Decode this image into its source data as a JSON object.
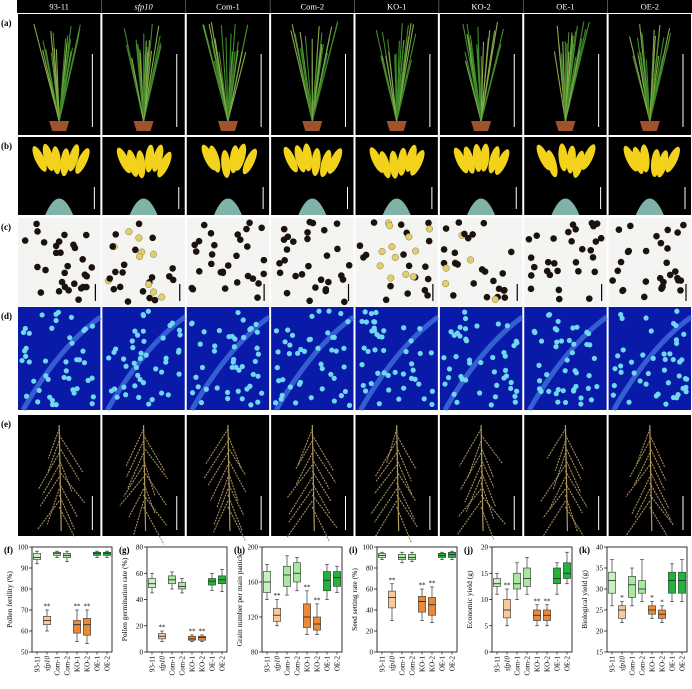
{
  "columns": [
    "93-11",
    "sfp10",
    "Com-1",
    "Com-2",
    "KO-1",
    "KO-2",
    "OE-1",
    "OE-2"
  ],
  "panel_labels": [
    "(a)",
    "(b)",
    "(c)",
    "(d)",
    "(e)"
  ],
  "chart_data": [
    {
      "type": "box",
      "panel": "(f)",
      "ylabel": "Pollen fertility (%)",
      "categories": [
        "93-11",
        "sfp10",
        "Com-1",
        "Com-2",
        "KO-1",
        "KO-2",
        "OE-1",
        "OE-2"
      ],
      "colors": [
        "#c8f0c0",
        "#f6c89a",
        "#a8e8a0",
        "#a8e8a0",
        "#e88a3a",
        "#e88a3a",
        "#22b33a",
        "#22b33a"
      ],
      "annotations": [
        null,
        "**",
        null,
        null,
        "**",
        "**",
        null,
        null
      ],
      "ylim": [
        50,
        100
      ],
      "yticks": [
        50,
        60,
        70,
        80,
        90,
        100
      ],
      "boxes": [
        {
          "min": 92,
          "q1": 94,
          "median": 95,
          "q3": 97,
          "max": 98
        },
        {
          "min": 60,
          "q1": 63,
          "median": 65,
          "q3": 67,
          "max": 70
        },
        {
          "min": 95,
          "q1": 96,
          "median": 97,
          "q3": 97.5,
          "max": 98
        },
        {
          "min": 93,
          "q1": 95,
          "median": 96,
          "q3": 97,
          "max": 98
        },
        {
          "min": 55,
          "q1": 59,
          "median": 63,
          "q3": 65,
          "max": 70
        },
        {
          "min": 54,
          "q1": 58,
          "median": 63,
          "q3": 66,
          "max": 70
        },
        {
          "min": 95,
          "q1": 96,
          "median": 97,
          "q3": 97.5,
          "max": 98
        },
        {
          "min": 95,
          "q1": 96,
          "median": 97,
          "q3": 97.5,
          "max": 98
        }
      ]
    },
    {
      "type": "box",
      "panel": "(g)",
      "ylabel": "Pollen  germination rate (%)",
      "categories": [
        "93-11",
        "sfp10",
        "Com-1",
        "Com-2",
        "KO-1",
        "KO-2",
        "OE-1",
        "OE-2"
      ],
      "colors": [
        "#c8f0c0",
        "#f6c89a",
        "#a8e8a0",
        "#a8e8a0",
        "#e88a3a",
        "#e88a3a",
        "#22b33a",
        "#22b33a"
      ],
      "annotations": [
        null,
        "**",
        null,
        null,
        "**",
        "**",
        null,
        null
      ],
      "ylim": [
        0,
        80
      ],
      "yticks": [
        0,
        20,
        40,
        60,
        80
      ],
      "boxes": [
        {
          "min": 45,
          "q1": 49,
          "median": 52,
          "q3": 56,
          "max": 60
        },
        {
          "min": 8,
          "q1": 10,
          "median": 12,
          "q3": 14,
          "max": 16
        },
        {
          "min": 48,
          "q1": 52,
          "median": 55,
          "q3": 58,
          "max": 61
        },
        {
          "min": 45,
          "q1": 48,
          "median": 50,
          "q3": 53,
          "max": 56
        },
        {
          "min": 8,
          "q1": 9,
          "median": 10,
          "q3": 12,
          "max": 13
        },
        {
          "min": 8,
          "q1": 9,
          "median": 11,
          "q3": 12,
          "max": 13
        },
        {
          "min": 47,
          "q1": 51,
          "median": 54,
          "q3": 56,
          "max": 60
        },
        {
          "min": 46,
          "q1": 52,
          "median": 55,
          "q3": 58,
          "max": 63
        }
      ]
    },
    {
      "type": "box",
      "panel": "(h)",
      "ylabel": "Grain number per main panicle",
      "categories": [
        "93-11",
        "sfp10",
        "Com-1",
        "Com-2",
        "KO-1",
        "KO-2",
        "OE-1",
        "OE-2"
      ],
      "colors": [
        "#c8f0c0",
        "#f6c89a",
        "#a8e8a0",
        "#a8e8a0",
        "#e88a3a",
        "#e88a3a",
        "#22b33a",
        "#22b33a"
      ],
      "annotations": [
        null,
        "**",
        null,
        null,
        "**",
        "**",
        null,
        null
      ],
      "ylim": [
        80,
        200
      ],
      "yticks": [
        80,
        120,
        160,
        200
      ],
      "boxes": [
        {
          "min": 140,
          "q1": 148,
          "median": 160,
          "q3": 172,
          "max": 180
        },
        {
          "min": 110,
          "q1": 115,
          "median": 122,
          "q3": 130,
          "max": 140
        },
        {
          "min": 145,
          "q1": 155,
          "median": 168,
          "q3": 178,
          "max": 190
        },
        {
          "min": 150,
          "q1": 160,
          "median": 170,
          "q3": 182,
          "max": 188
        },
        {
          "min": 100,
          "q1": 108,
          "median": 120,
          "q3": 135,
          "max": 150
        },
        {
          "min": 100,
          "q1": 105,
          "median": 112,
          "q3": 120,
          "max": 135
        },
        {
          "min": 140,
          "q1": 150,
          "median": 162,
          "q3": 172,
          "max": 180
        },
        {
          "min": 148,
          "q1": 155,
          "median": 165,
          "q3": 172,
          "max": 178
        }
      ]
    },
    {
      "type": "box",
      "panel": "(i)",
      "ylabel": "Seed setting rate (%)",
      "categories": [
        "93-11",
        "sfp10",
        "Com-1",
        "Com-2",
        "KO-1",
        "KO-2",
        "OE-1",
        "OE-2"
      ],
      "colors": [
        "#c8f0c0",
        "#f6c89a",
        "#a8e8a0",
        "#a8e8a0",
        "#e88a3a",
        "#e88a3a",
        "#22b33a",
        "#22b33a"
      ],
      "annotations": [
        null,
        "**",
        null,
        null,
        "**",
        "**",
        null,
        null
      ],
      "ylim": [
        0,
        100
      ],
      "yticks": [
        0,
        20,
        40,
        60,
        80,
        100
      ],
      "boxes": [
        {
          "min": 88,
          "q1": 90,
          "median": 92,
          "q3": 94,
          "max": 95
        },
        {
          "min": 30,
          "q1": 42,
          "median": 52,
          "q3": 58,
          "max": 65
        },
        {
          "min": 85,
          "q1": 88,
          "median": 90,
          "q3": 93,
          "max": 95
        },
        {
          "min": 86,
          "q1": 88,
          "median": 90,
          "q3": 93,
          "max": 95
        },
        {
          "min": 30,
          "q1": 38,
          "median": 48,
          "q3": 53,
          "max": 60
        },
        {
          "min": 28,
          "q1": 35,
          "median": 45,
          "q3": 52,
          "max": 62
        },
        {
          "min": 88,
          "q1": 90,
          "median": 92,
          "q3": 94,
          "max": 95
        },
        {
          "min": 88,
          "q1": 90,
          "median": 93,
          "q3": 95,
          "max": 96
        }
      ]
    },
    {
      "type": "box",
      "panel": "(j)",
      "ylabel": "Economic yield (g)",
      "categories": [
        "93-11",
        "sfp10",
        "Com-1",
        "Com-2",
        "KO-1",
        "KO-2",
        "OE-1",
        "OE-2"
      ],
      "colors": [
        "#c8f0c0",
        "#f6c89a",
        "#a8e8a0",
        "#a8e8a0",
        "#e88a3a",
        "#e88a3a",
        "#22b33a",
        "#22b33a"
      ],
      "annotations": [
        null,
        "**",
        null,
        null,
        "**",
        "**",
        null,
        null
      ],
      "ylim": [
        0,
        20
      ],
      "yticks": [
        0,
        5,
        10,
        15,
        20
      ],
      "boxes": [
        {
          "min": 11,
          "q1": 12.5,
          "median": 13,
          "q3": 14,
          "max": 15
        },
        {
          "min": 5,
          "q1": 6.5,
          "median": 8,
          "q3": 10,
          "max": 12
        },
        {
          "min": 10,
          "q1": 12,
          "median": 13,
          "q3": 15,
          "max": 17
        },
        {
          "min": 11,
          "q1": 12.5,
          "median": 14,
          "q3": 16,
          "max": 18
        },
        {
          "min": 5,
          "q1": 6,
          "median": 7,
          "q3": 8,
          "max": 9
        },
        {
          "min": 5,
          "q1": 6,
          "median": 7,
          "q3": 8,
          "max": 9
        },
        {
          "min": 11,
          "q1": 13,
          "median": 14,
          "q3": 16,
          "max": 17
        },
        {
          "min": 13,
          "q1": 14,
          "median": 15,
          "q3": 17,
          "max": 19
        }
      ]
    },
    {
      "type": "box",
      "panel": "(k)",
      "ylabel": "Biological yield (g)",
      "categories": [
        "93-11",
        "sfp10",
        "Com-1",
        "Com-2",
        "KO-1",
        "KO-2",
        "OE-1",
        "OE-2"
      ],
      "colors": [
        "#c8f0c0",
        "#f6c89a",
        "#a8e8a0",
        "#a8e8a0",
        "#e88a3a",
        "#e88a3a",
        "#22b33a",
        "#22b33a"
      ],
      "annotations": [
        null,
        "*",
        null,
        null,
        "*",
        "*",
        null,
        null
      ],
      "ylim": [
        15,
        40
      ],
      "yticks": [
        15,
        20,
        25,
        30,
        35,
        40
      ],
      "boxes": [
        {
          "min": 26,
          "q1": 29,
          "median": 32,
          "q3": 34,
          "max": 37
        },
        {
          "min": 22,
          "q1": 23,
          "median": 25,
          "q3": 26,
          "max": 27
        },
        {
          "min": 26,
          "q1": 28,
          "median": 31,
          "q3": 33,
          "max": 35
        },
        {
          "min": 27,
          "q1": 29,
          "median": 30,
          "q3": 32,
          "max": 37
        },
        {
          "min": 23,
          "q1": 24,
          "median": 25,
          "q3": 26,
          "max": 27
        },
        {
          "min": 22,
          "q1": 23,
          "median": 24,
          "q3": 25,
          "max": 26
        },
        {
          "min": 27,
          "q1": 29,
          "median": 32,
          "q3": 34,
          "max": 36
        },
        {
          "min": 27,
          "q1": 29,
          "median": 32,
          "q3": 34,
          "max": 37
        }
      ]
    }
  ]
}
